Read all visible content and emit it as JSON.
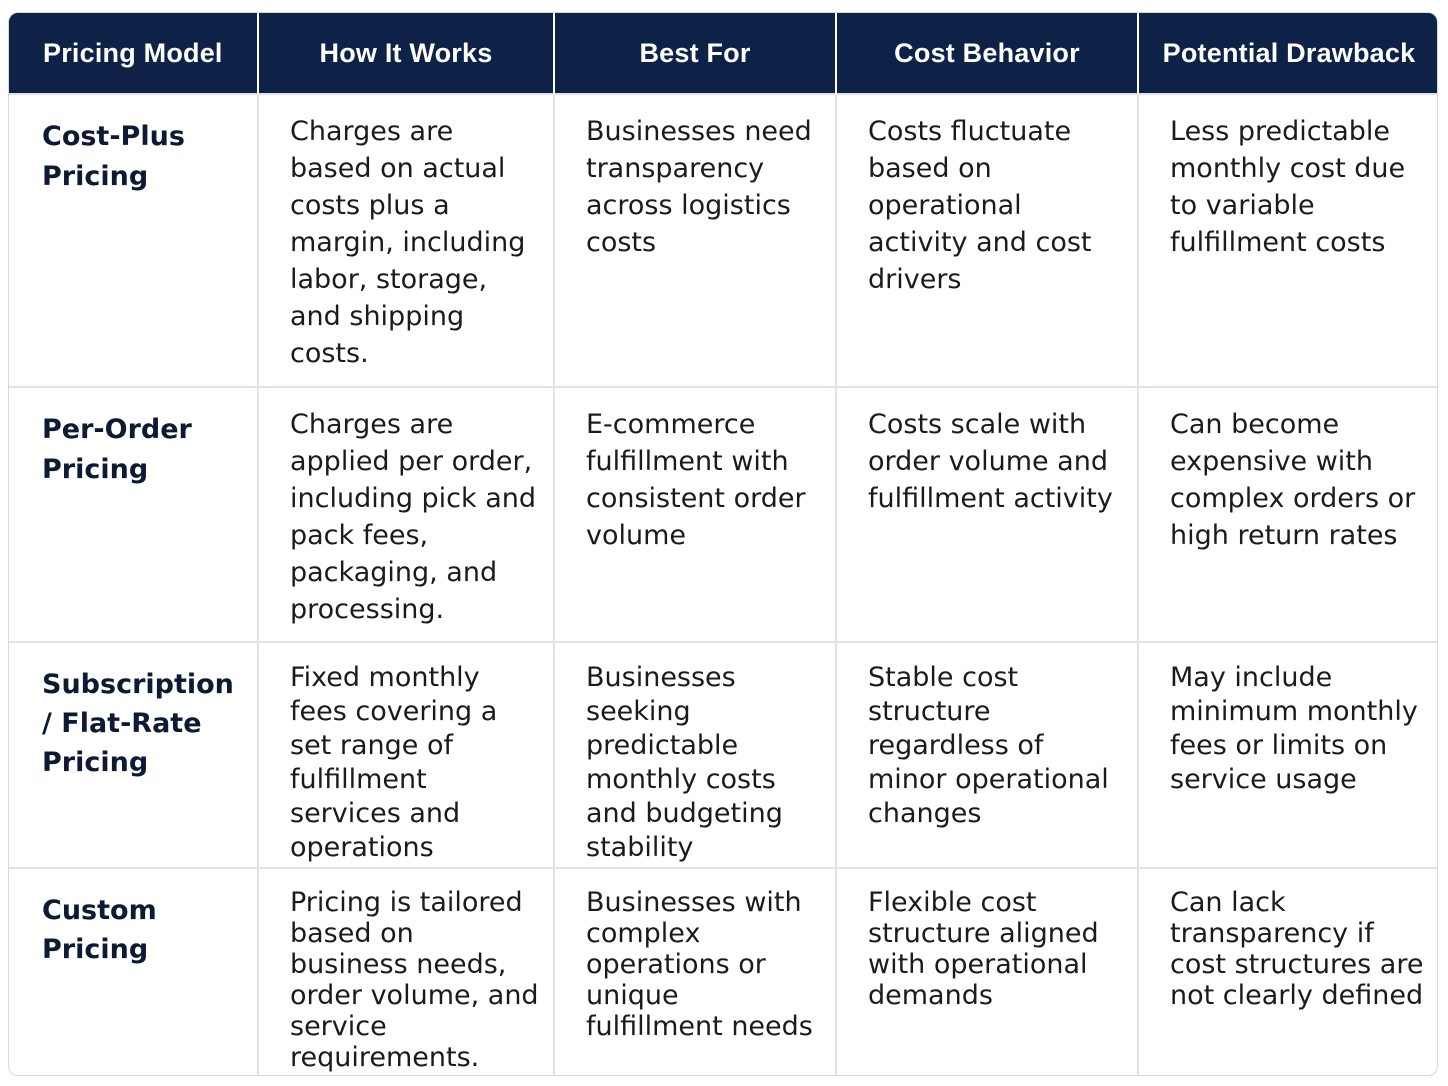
{
  "table": {
    "header": [
      "Pricing Model",
      "How It Works",
      "Best For",
      "Cost Behavior",
      "Potential Drawback"
    ],
    "rows": [
      [
        "Cost-Plus Pricing",
        "Charges are based on actual costs plus a margin, including labor, storage, and shipping costs.",
        "Businesses need transparency across logistics costs",
        "Costs fluctuate based on operational activity and cost drivers",
        "Less predictable monthly cost due to variable fulfillment costs"
      ],
      [
        "Per-Order Pricing",
        "Charges are applied per order, including pick and pack fees, packaging, and processing.",
        "E-commerce fulfillment with consistent order volume",
        "Costs scale with order volume and fulfillment activity",
        "Can become expensive with complex orders or high return rates"
      ],
      [
        "Subscription / Flat-Rate Pricing",
        "Fixed monthly fees covering a set range of fulfillment services and operations",
        "Businesses seeking predictable monthly costs and budgeting stability",
        "Stable cost structure regardless of minor operational changes",
        "May include minimum monthly fees or limits on service usage"
      ],
      [
        "Custom Pricing",
        "Pricing is tailored based on business needs, order volume, and service requirements.",
        "Businesses with complex operations or unique fulfillment needs",
        "Flexible cost structure aligned with operational demands",
        "Can lack transparency if cost structures are not clearly defined"
      ]
    ]
  }
}
